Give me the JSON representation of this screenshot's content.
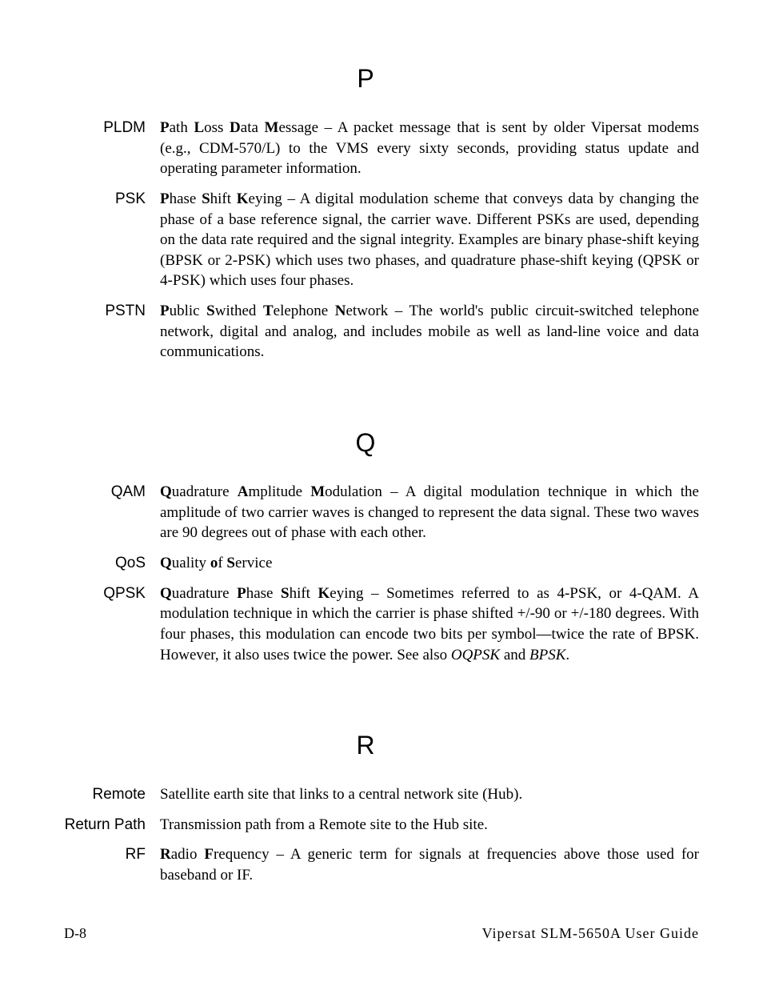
{
  "sections": [
    {
      "letter": "P",
      "entries": [
        {
          "term": "PLDM",
          "bold_runs": [
            "P",
            "L",
            "D",
            "M"
          ],
          "plain_runs": [
            "ath ",
            "oss ",
            "ata ",
            "essage"
          ],
          "tail": " – A packet message that is sent by older Vipersat modems (e.g., CDM-570/L) to the VMS every sixty seconds, providing status update and operating parameter information."
        },
        {
          "term": "PSK",
          "bold_runs": [
            "P",
            "S",
            "K"
          ],
          "plain_runs": [
            "hase ",
            "hift ",
            "eying"
          ],
          "tail": " – A digital modulation scheme that conveys data by changing the phase of a base reference signal, the carrier wave. Different PSKs are used, depending on the data rate required and the signal integrity. Examples are binary phase-shift keying (BPSK or 2-PSK) which uses two phases, and quadrature phase-shift keying (QPSK or 4-PSK) which uses four phases."
        },
        {
          "term": "PSTN",
          "bold_runs": [
            "P",
            "S",
            "T",
            "N"
          ],
          "plain_runs": [
            "ublic ",
            "withed ",
            "elephone ",
            "etwork"
          ],
          "tail": " – The world's public circuit-switched telephone network, digital and analog, and includes mobile as well as land-line voice and data communications."
        }
      ]
    },
    {
      "letter": "Q",
      "entries": [
        {
          "term": "QAM",
          "bold_runs": [
            "Q",
            "A",
            "M"
          ],
          "plain_runs": [
            "uadrature ",
            "mplitude ",
            "odulation"
          ],
          "tail": " – A digital modulation technique in which the amplitude of two carrier waves is changed to represent the data signal. These two waves are 90 degrees out of phase with each other."
        },
        {
          "term": "QoS",
          "bold_runs": [
            "Q",
            "o",
            "S"
          ],
          "plain_runs": [
            "uality ",
            "f ",
            "ervice"
          ],
          "tail": ""
        },
        {
          "term": "QPSK",
          "bold_runs": [
            "Q",
            "P",
            "S",
            "K"
          ],
          "plain_runs": [
            "uadrature ",
            "hase ",
            "hift ",
            "eying"
          ],
          "tail": " – Sometimes referred to as 4-PSK, or 4-QAM. A modulation technique in which the carrier is phase shifted +/-90 or +/-180 degrees. With four phases, this modulation can encode two bits per symbol—twice the rate of BPSK. However, it also uses twice the power. See also ",
          "italics": [
            "OQPSK",
            "BPSK"
          ],
          "italic_joins": [
            " and ",
            "."
          ]
        }
      ]
    },
    {
      "letter": "R",
      "entries": [
        {
          "term": "Remote",
          "tail": "Satellite earth site that links to a central network site (Hub)."
        },
        {
          "term": "Return Path",
          "tail": "Transmission path from a Remote site to the Hub site."
        },
        {
          "term": "RF",
          "bold_runs": [
            "R",
            "F"
          ],
          "plain_runs": [
            "adio ",
            "requency"
          ],
          "tail": " – A generic term for signals at frequencies above those used for baseband or IF."
        }
      ]
    }
  ],
  "footer": {
    "left": "D-8",
    "right": "Vipersat SLM-5650A User Guide"
  }
}
